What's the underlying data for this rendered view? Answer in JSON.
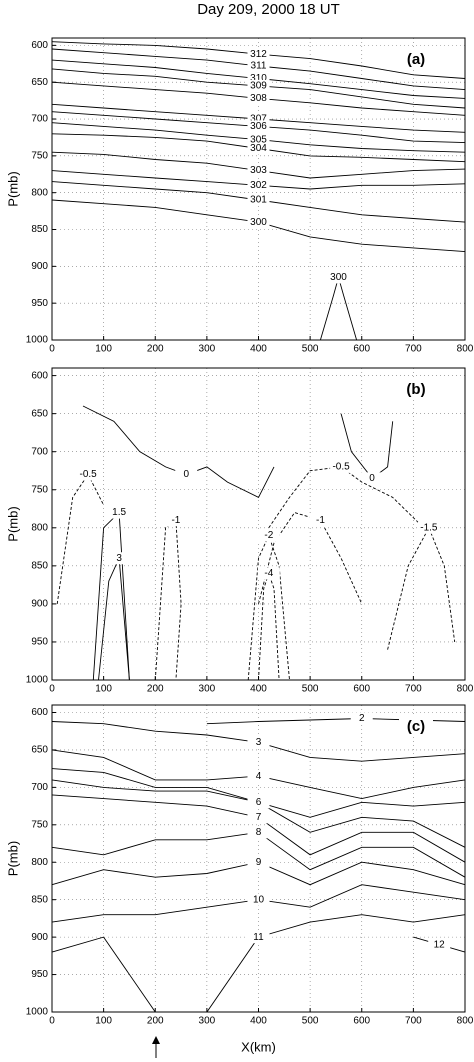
{
  "chart_data": [
    {
      "type": "contour",
      "title": "Day 209, 2000 18 UT",
      "panel_label": "(a)",
      "ylabel": "P(mb)",
      "xlim": [
        0,
        800
      ],
      "ylim": [
        1000,
        590
      ],
      "xticks": [
        0,
        100,
        200,
        300,
        400,
        500,
        600,
        700,
        800
      ],
      "yticks": [
        600,
        650,
        700,
        750,
        800,
        850,
        900,
        950,
        1000
      ],
      "grid": true,
      "negative_dashed": true,
      "contours": [
        {
          "level": 312,
          "x": [
            0,
            100,
            200,
            300,
            400,
            500,
            600,
            700,
            800
          ],
          "values": [
            595,
            598,
            600,
            605,
            612,
            618,
            628,
            640,
            645
          ]
        },
        {
          "level": 311,
          "x": [
            0,
            100,
            200,
            300,
            400,
            500,
            600,
            700,
            800
          ],
          "values": [
            605,
            610,
            615,
            620,
            628,
            635,
            645,
            655,
            660
          ]
        },
        {
          "level": 310,
          "x": [
            0,
            100,
            200,
            300,
            400,
            500,
            600,
            700,
            800
          ],
          "values": [
            620,
            625,
            630,
            638,
            645,
            652,
            660,
            668,
            672
          ]
        },
        {
          "level": 309,
          "x": [
            0,
            100,
            200,
            300,
            400,
            500,
            600,
            700,
            800
          ],
          "values": [
            632,
            638,
            642,
            650,
            655,
            660,
            670,
            680,
            685
          ]
        },
        {
          "level": 308,
          "x": [
            0,
            100,
            200,
            300,
            400,
            500,
            600,
            700,
            800
          ],
          "values": [
            650,
            655,
            660,
            665,
            672,
            678,
            685,
            690,
            695
          ]
        },
        {
          "level": 307,
          "x": [
            0,
            100,
            200,
            300,
            400,
            500,
            600,
            700,
            800
          ],
          "values": [
            680,
            685,
            690,
            695,
            700,
            705,
            710,
            715,
            718
          ]
        },
        {
          "level": 306,
          "x": [
            0,
            100,
            200,
            300,
            400,
            500,
            600,
            700,
            800
          ],
          "values": [
            690,
            695,
            700,
            705,
            710,
            715,
            722,
            730,
            732
          ]
        },
        {
          "level": 305,
          "x": [
            0,
            100,
            200,
            300,
            400,
            500,
            600,
            700,
            800
          ],
          "values": [
            705,
            710,
            715,
            722,
            728,
            735,
            740,
            743,
            745
          ]
        },
        {
          "level": 304,
          "x": [
            0,
            100,
            200,
            300,
            400,
            500,
            600,
            700,
            800
          ],
          "values": [
            720,
            722,
            725,
            730,
            740,
            750,
            752,
            755,
            758
          ]
        },
        {
          "level": 303,
          "x": [
            0,
            100,
            200,
            300,
            400,
            500,
            600,
            700,
            800
          ],
          "values": [
            745,
            748,
            755,
            760,
            770,
            780,
            775,
            770,
            768
          ]
        },
        {
          "level": 302,
          "x": [
            0,
            100,
            200,
            300,
            400,
            500,
            600,
            700,
            800
          ],
          "values": [
            770,
            775,
            780,
            785,
            790,
            795,
            790,
            790,
            788
          ]
        },
        {
          "level": 301,
          "x": [
            0,
            100,
            200,
            300,
            400,
            500,
            600,
            700,
            800
          ],
          "values": [
            785,
            790,
            795,
            800,
            810,
            820,
            830,
            835,
            840
          ]
        },
        {
          "level": 300,
          "x": [
            0,
            100,
            200,
            300,
            400,
            500,
            600,
            700,
            800
          ],
          "values": [
            810,
            815,
            820,
            830,
            840,
            860,
            870,
            875,
            880
          ]
        },
        {
          "level": 300,
          "x": [
            520,
            545,
            555,
            565,
            590
          ],
          "values": [
            1000,
            940,
            915,
            940,
            1000
          ]
        }
      ]
    },
    {
      "type": "contour",
      "panel_label": "(b)",
      "ylabel": "P(mb)",
      "xlim": [
        0,
        800
      ],
      "ylim": [
        1000,
        590
      ],
      "xticks": [
        0,
        100,
        200,
        300,
        400,
        500,
        600,
        700,
        800
      ],
      "yticks": [
        600,
        650,
        700,
        750,
        800,
        850,
        900,
        950,
        1000
      ],
      "grid": true,
      "negative_dashed": true,
      "contours": [
        {
          "level": 0,
          "x": [
            60,
            120,
            170,
            220,
            260,
            300,
            340,
            400,
            430
          ],
          "values": [
            640,
            660,
            700,
            720,
            730,
            720,
            740,
            760,
            720
          ]
        },
        {
          "level": 0,
          "x": [
            560,
            580,
            620,
            650,
            660
          ],
          "values": [
            650,
            700,
            735,
            720,
            660
          ]
        },
        {
          "level": -0.5,
          "x": [
            420,
            460,
            500,
            560,
            600,
            660,
            720
          ],
          "values": [
            800,
            760,
            725,
            720,
            740,
            760,
            800
          ]
        },
        {
          "level": -1,
          "x": [
            400,
            430,
            470,
            520,
            560,
            600
          ],
          "values": [
            900,
            820,
            780,
            790,
            840,
            900
          ]
        },
        {
          "level": -1.5,
          "x": [
            650,
            690,
            730,
            760,
            780
          ],
          "values": [
            960,
            850,
            800,
            850,
            950
          ]
        },
        {
          "level": -2,
          "x": [
            380,
            400,
            420,
            440,
            460
          ],
          "values": [
            1000,
            840,
            810,
            850,
            1000
          ]
        },
        {
          "level": -4,
          "x": [
            400,
            410,
            420,
            430,
            440
          ],
          "values": [
            1000,
            880,
            860,
            880,
            1000
          ]
        },
        {
          "level": -0.5,
          "x": [
            10,
            40,
            70,
            100
          ],
          "values": [
            900,
            760,
            730,
            770
          ]
        },
        {
          "level": 1.5,
          "x": [
            80,
            100,
            130,
            150
          ],
          "values": [
            1000,
            800,
            780,
            1000
          ]
        },
        {
          "level": 3,
          "x": [
            90,
            110,
            130,
            150
          ],
          "values": [
            1000,
            870,
            840,
            1000
          ]
        },
        {
          "level": -1,
          "x": [
            200,
            220,
            240,
            250,
            240
          ],
          "values": [
            1000,
            800,
            790,
            900,
            1000
          ]
        }
      ]
    },
    {
      "type": "contour",
      "panel_label": "(c)",
      "ylabel": "P(mb)",
      "xlabel": "X(km)",
      "xlim": [
        0,
        800
      ],
      "ylim": [
        1000,
        590
      ],
      "xticks": [
        0,
        100,
        200,
        300,
        400,
        500,
        600,
        700,
        800
      ],
      "yticks": [
        600,
        650,
        700,
        750,
        800,
        850,
        900,
        950,
        1000
      ],
      "grid": true,
      "negative_dashed": true,
      "contours": [
        {
          "level": 2,
          "x": [
            300,
            400,
            500,
            600,
            700,
            800
          ],
          "values": [
            615,
            612,
            610,
            608,
            610,
            612
          ]
        },
        {
          "level": 3,
          "x": [
            0,
            100,
            200,
            300,
            400,
            500,
            600,
            700,
            800
          ],
          "values": [
            612,
            615,
            625,
            630,
            640,
            660,
            665,
            660,
            655
          ]
        },
        {
          "level": 4,
          "x": [
            0,
            100,
            200,
            300,
            400,
            500,
            600,
            700,
            800
          ],
          "values": [
            650,
            660,
            690,
            690,
            685,
            700,
            715,
            700,
            690
          ]
        },
        {
          "level": 5,
          "x": [
            0,
            100,
            200,
            300,
            400,
            500,
            600,
            700,
            800
          ],
          "values": [
            675,
            680,
            700,
            700,
            720,
            740,
            720,
            725,
            720
          ]
        },
        {
          "level": 6,
          "x": [
            0,
            100,
            200,
            300,
            400,
            500,
            600,
            700,
            800
          ],
          "values": [
            690,
            700,
            705,
            705,
            720,
            760,
            740,
            745,
            780
          ]
        },
        {
          "level": 7,
          "x": [
            0,
            100,
            200,
            300,
            400,
            500,
            600,
            700,
            800
          ],
          "values": [
            710,
            715,
            720,
            725,
            740,
            790,
            760,
            760,
            800
          ]
        },
        {
          "level": 8,
          "x": [
            0,
            100,
            200,
            300,
            400,
            500,
            600,
            700,
            800
          ],
          "values": [
            780,
            790,
            770,
            770,
            760,
            810,
            780,
            780,
            820
          ]
        },
        {
          "level": 9,
          "x": [
            0,
            100,
            200,
            300,
            400,
            500,
            600,
            700,
            800
          ],
          "values": [
            830,
            810,
            820,
            815,
            800,
            830,
            800,
            810,
            830
          ]
        },
        {
          "level": 10,
          "x": [
            0,
            100,
            200,
            300,
            400,
            500,
            600,
            700,
            800
          ],
          "values": [
            880,
            870,
            870,
            860,
            850,
            860,
            830,
            840,
            850
          ]
        },
        {
          "level": 11,
          "x": [
            0,
            100,
            200,
            300,
            400,
            500,
            600,
            700,
            800
          ],
          "values": [
            920,
            900,
            1000,
            1000,
            900,
            880,
            870,
            880,
            870
          ]
        },
        {
          "level": 12,
          "x": [
            700,
            750,
            800
          ],
          "values": [
            900,
            910,
            920
          ]
        }
      ]
    }
  ]
}
